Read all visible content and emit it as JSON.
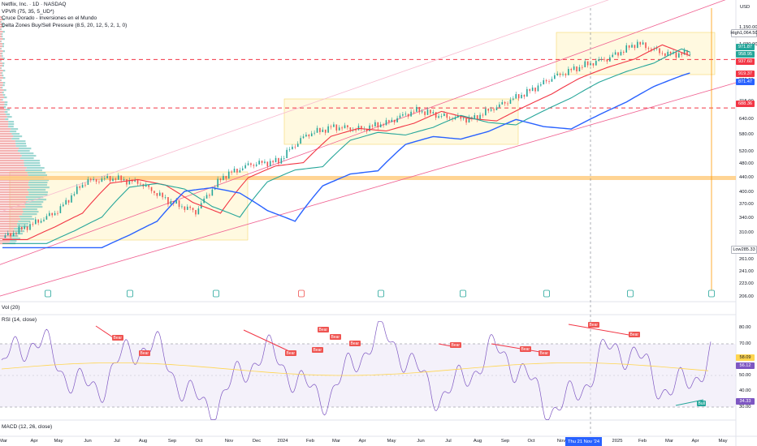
{
  "legend": {
    "title": "Netflix, Inc. · 1D · NASDAQ",
    "line2": "VPVR (75, 35, 5_UD*)",
    "line3": "Cruce Dorado - Inversiones en el Mundo",
    "line4": "Delta Zones Buy/Sell Pressure (8.5, 20, 12, 5, 2, 1, 0)"
  },
  "currency": "USD",
  "price_boxes": [
    {
      "label": "High",
      "value": "1,064.50",
      "color": "#ffffff",
      "text": "#131722"
    },
    {
      "label": "",
      "value": "971.87",
      "color": "#26a69a",
      "text": "#ffffff"
    },
    {
      "label": "",
      "value": "958.95",
      "color": "#26a69a",
      "text": "#ffffff"
    },
    {
      "label": "",
      "value": "937.60",
      "color": "#f23645",
      "text": "#ffffff"
    },
    {
      "label": "",
      "value": "919.37",
      "color": "#f23645",
      "text": "#ffffff"
    },
    {
      "label": "",
      "value": "871.47",
      "color": "#2962ff",
      "text": "#ffffff"
    },
    {
      "label": "",
      "value": "688.36",
      "color": "#f23645",
      "text": "#ffffff"
    },
    {
      "label": "Low",
      "value": "285.33",
      "color": "#ffffff",
      "text": "#131722"
    }
  ],
  "pane_labels": {
    "vol": "Vol (20)",
    "rsi": "RSI (14, close)",
    "macd": "MACD (12, 26, close)"
  },
  "date_flag": "Thu 21 Nov '24",
  "rsi_badges": {
    "v1": "58.09",
    "v2": "56.12",
    "v3": "34.33"
  },
  "rsi_tags": [
    {
      "text": "Bear",
      "kind": "bear"
    },
    {
      "text": "Bear",
      "kind": "bear"
    },
    {
      "text": "Bear",
      "kind": "bear"
    },
    {
      "text": "Bear",
      "kind": "bear"
    },
    {
      "text": "Bear",
      "kind": "bear"
    },
    {
      "text": "Bear",
      "kind": "bear"
    },
    {
      "text": "Bear",
      "kind": "bear"
    },
    {
      "text": "Bear",
      "kind": "bear"
    },
    {
      "text": "Bear",
      "kind": "bear"
    },
    {
      "text": "Bear",
      "kind": "bear"
    },
    {
      "text": "Bear",
      "kind": "bear"
    },
    {
      "text": "Bear",
      "kind": "bear"
    },
    {
      "text": "Bear",
      "kind": "bear"
    },
    {
      "text": "Bull",
      "kind": "bull"
    }
  ],
  "chart_data": {
    "type": "line",
    "title": "Netflix, Inc. · 1D · NASDAQ",
    "y_scale": "log",
    "price_ticks": [
      "1,150.00",
      "1,030.00",
      "920.00",
      "820.00",
      "715.00",
      "640.00",
      "580.00",
      "520.00",
      "480.00",
      "440.00",
      "400.00",
      "370.00",
      "340.00",
      "310.00",
      "285.33",
      "261.00",
      "241.00",
      "223.00",
      "206.00"
    ],
    "price_tick_values": [
      1150,
      1030,
      920,
      820,
      715,
      640,
      580,
      520,
      480,
      440,
      400,
      370,
      340,
      310,
      285.33,
      261,
      241,
      223,
      206
    ],
    "rsi_ticks": [
      "80.00",
      "70.00",
      "58.09",
      "50.00",
      "40.00",
      "30.00"
    ],
    "rsi_tick_values": [
      80,
      70,
      58.09,
      50,
      40,
      30
    ],
    "x_labels": [
      "Mar",
      "Apr",
      "May",
      "Jun",
      "Jul",
      "Aug",
      "Sep",
      "Oct",
      "Nov",
      "Dec",
      "2024",
      "Feb",
      "Mar",
      "Apr",
      "May",
      "Jun",
      "Jul",
      "Aug",
      "Sep",
      "Oct",
      "Nov",
      "Thu 21 Nov '24",
      "2025",
      "Feb",
      "Mar",
      "Apr",
      "May"
    ],
    "price_approx": {
      "months": [
        "2023-03",
        "2023-04",
        "2023-05",
        "2023-06",
        "2023-07",
        "2023-08",
        "2023-09",
        "2023-10",
        "2023-11",
        "2023-12",
        "2024-01",
        "2024-02",
        "2024-03",
        "2024-04",
        "2024-05",
        "2024-06",
        "2024-07",
        "2024-08",
        "2024-09",
        "2024-10",
        "2024-11",
        "2024-12",
        "2025-01",
        "2025-02",
        "2025-03",
        "2025-04"
      ],
      "close": [
        300,
        325,
        355,
        430,
        440,
        425,
        380,
        355,
        445,
        480,
        490,
        580,
        610,
        600,
        630,
        680,
        650,
        640,
        700,
        760,
        840,
        900,
        950,
        1040,
        970,
        975
      ]
    },
    "horizontal_levels": [
      937.6,
      688.36,
      440
    ],
    "series": [
      {
        "name": "Price",
        "color": "#131722"
      },
      {
        "name": "MA 50",
        "color": "#f23645"
      },
      {
        "name": "MA 100",
        "color": "#26a69a"
      },
      {
        "name": "MA 200",
        "color": "#2962ff"
      }
    ]
  }
}
